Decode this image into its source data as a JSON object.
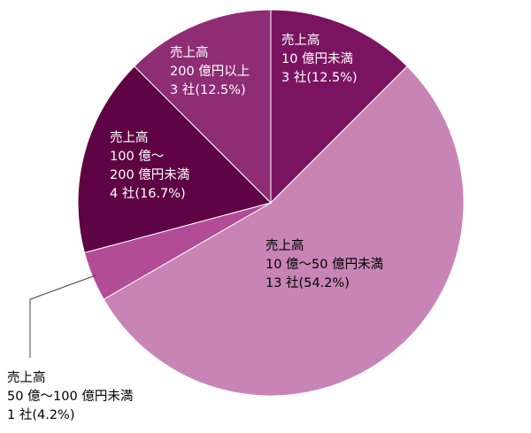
{
  "chart_data": {
    "type": "pie",
    "start": "top",
    "direction": "clockwise",
    "slices": [
      {
        "lines": [
          "売上高",
          "10 億円未満",
          "3 社(12.5%)"
        ],
        "count": 3,
        "percent": 12.5,
        "color": "#7b1460",
        "label_color": "#ffffff"
      },
      {
        "lines": [
          "売上高",
          "10 億～50 億円未満",
          "13 社(54.2%)"
        ],
        "count": 13,
        "percent": 54.2,
        "color": "#c884b4",
        "label_color": "#000000"
      },
      {
        "lines": [
          "売上高",
          "50 億～100 億円未満",
          "1 社(4.2%)"
        ],
        "count": 1,
        "percent": 4.2,
        "color": "#b24c96",
        "label_color": "#000000"
      },
      {
        "lines": [
          "売上高",
          "100 億～",
          "200 億円未満",
          "4 社(16.7%)"
        ],
        "count": 4,
        "percent": 16.7,
        "color": "#5e0343",
        "label_color": "#ffffff"
      },
      {
        "lines": [
          "売上高",
          "200 億円以上",
          "3 社(12.5%)"
        ],
        "count": 3,
        "percent": 12.5,
        "color": "#8e2c74",
        "label_color": "#ffffff"
      }
    ]
  }
}
